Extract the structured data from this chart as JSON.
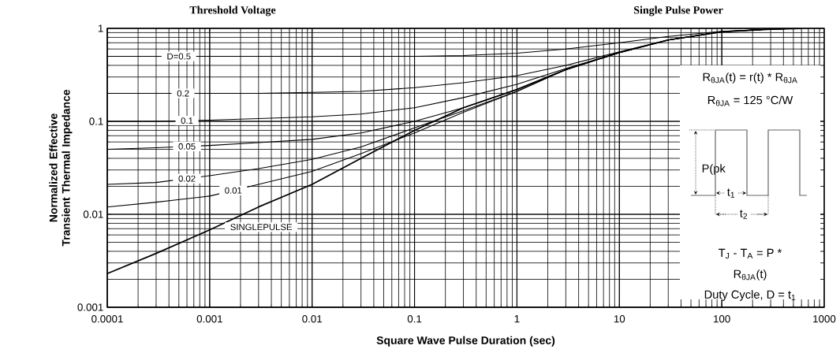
{
  "chart_data": {
    "type": "line",
    "title": "Threshold Voltage",
    "subtitle": "Single Pulse Power",
    "xlabel": "Square Wave Pulse Duration (sec)",
    "ylabel": "Normalized Effective Transient Thermal Impedance",
    "x": [
      0.0001,
      0.0003,
      0.001,
      0.003,
      0.01,
      0.03,
      0.1,
      0.3,
      1,
      3,
      10,
      30,
      100,
      300,
      600
    ],
    "series": [
      {
        "name": "D=0.5",
        "color": "#000000",
        "values": [
          0.5,
          0.5,
          0.5,
          0.5,
          0.5,
          0.5,
          0.5,
          0.51,
          0.54,
          0.6,
          0.7,
          0.82,
          0.93,
          0.98,
          1
        ]
      },
      {
        "name": "0.2",
        "color": "#000000",
        "values": [
          0.2,
          0.2,
          0.2,
          0.2,
          0.205,
          0.21,
          0.23,
          0.26,
          0.31,
          0.4,
          0.56,
          0.75,
          0.92,
          0.98,
          1
        ]
      },
      {
        "name": "0.1",
        "color": "#000000",
        "values": [
          0.1,
          0.1,
          0.103,
          0.107,
          0.112,
          0.12,
          0.14,
          0.18,
          0.25,
          0.37,
          0.55,
          0.75,
          0.92,
          0.98,
          1
        ]
      },
      {
        "name": "0.05",
        "color": "#000000",
        "values": [
          0.05,
          0.052,
          0.055,
          0.059,
          0.064,
          0.075,
          0.1,
          0.14,
          0.22,
          0.36,
          0.55,
          0.75,
          0.92,
          0.98,
          1
        ]
      },
      {
        "name": "0.02",
        "color": "#000000",
        "values": [
          0.021,
          0.022,
          0.026,
          0.031,
          0.039,
          0.053,
          0.085,
          0.13,
          0.21,
          0.36,
          0.55,
          0.75,
          0.92,
          0.98,
          1
        ]
      },
      {
        "name": "0.01",
        "color": "#000000",
        "values": [
          0.012,
          0.0135,
          0.0157,
          0.021,
          0.029,
          0.045,
          0.075,
          0.125,
          0.21,
          0.36,
          0.55,
          0.75,
          0.92,
          0.98,
          1
        ]
      },
      {
        "name": "SINGLEPULSE",
        "color": "#000000",
        "values": [
          0.0023,
          0.0038,
          0.0068,
          0.012,
          0.021,
          0.04,
          0.08,
          0.14,
          0.22,
          0.36,
          0.55,
          0.75,
          0.92,
          0.98,
          1
        ]
      }
    ],
    "log": "xy",
    "grid": true,
    "legend": false,
    "marker": "none",
    "line_style": "solid",
    "xlim": [
      0.0001,
      1000
    ],
    "ylim": [
      0.001,
      1
    ],
    "xticks": [
      0.0001,
      0.001,
      0.01,
      0.1,
      1,
      10,
      100,
      1000
    ],
    "yticks": [
      0.001,
      0.01,
      0.1,
      1
    ],
    "annotations": [
      "R$_{θJA}$(t) = r(t) * R$_{θJA}$",
      "R$_{θJA}$ = 125 °C/W",
      "P(pk",
      "t$_{1}$",
      "t$_{2}$",
      "T$_{J}$ - T$_{A}$ = P *",
      "R$_{θJA}$(t)",
      "Duty Cycle, D = t$_{1}$"
    ]
  }
}
